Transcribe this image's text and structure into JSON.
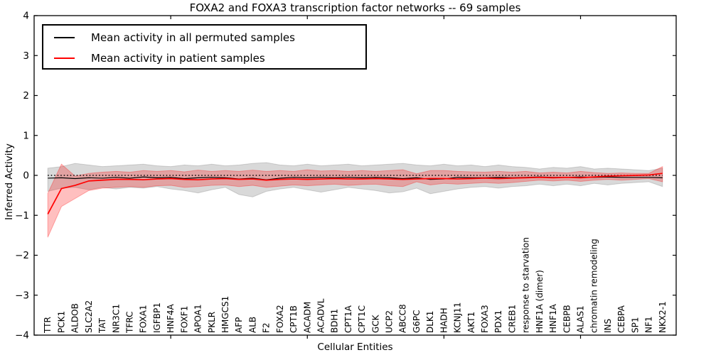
{
  "chart_data": {
    "type": "line",
    "title": "FOXA2 and FOXA3 transcription factor networks -- 69 samples",
    "xlabel": "Cellular Entities",
    "ylabel": "Inferred Activity",
    "ylim": [
      -4,
      4
    ],
    "yticks": [
      -4,
      -3,
      -2,
      -1,
      0,
      1,
      2,
      3,
      4
    ],
    "xticks_index": [
      10,
      20,
      30,
      40
    ],
    "grid": false,
    "legend_position": "upper left",
    "categories": [
      "TTR",
      "PCK1",
      "ALDOB",
      "SLC2A2",
      "TAT",
      "NR3C1",
      "TFRC",
      "FOXA1",
      "IGFBP1",
      "HNF4A",
      "FOXF1",
      "APOA1",
      "PKLR",
      "HMGCS1",
      "AFP",
      "ALB",
      "F2",
      "FOXA2",
      "CPT1B",
      "ACADM",
      "ACADVL",
      "BDH1",
      "CPT1A",
      "CPT1C",
      "GCK",
      "UCP2",
      "ABCC8",
      "G6PC",
      "DLK1",
      "HADH",
      "KCNJ11",
      "AKT1",
      "FOXA3",
      "PDX1",
      "CREB1",
      "response to starvation",
      "HNF1A (dimer)",
      "HNF1A",
      "CEBPB",
      "ALAS1",
      "chromatin remodeling",
      "INS",
      "CEBPA",
      "SP1",
      "NF1",
      "NKX2-1"
    ],
    "series": [
      {
        "name": "Mean activity in all permuted samples",
        "color": "#000000",
        "line_width": 1.2,
        "values": [
          -0.07,
          -0.06,
          -0.08,
          -0.06,
          -0.07,
          -0.05,
          -0.07,
          -0.04,
          -0.06,
          -0.05,
          -0.08,
          -0.06,
          -0.05,
          -0.06,
          -0.09,
          -0.07,
          -0.11,
          -0.07,
          -0.05,
          -0.06,
          -0.05,
          -0.06,
          -0.05,
          -0.06,
          -0.05,
          -0.06,
          -0.08,
          -0.06,
          -0.1,
          -0.09,
          -0.05,
          -0.06,
          -0.06,
          -0.05,
          -0.06,
          -0.05,
          -0.04,
          -0.05,
          -0.05,
          -0.04,
          -0.05,
          -0.04,
          -0.05,
          -0.05,
          -0.05,
          -0.06
        ]
      },
      {
        "name": "Mean activity in patient samples",
        "color": "#ff0000",
        "line_width": 1.7,
        "values": [
          -0.97,
          -0.33,
          -0.25,
          -0.14,
          -0.12,
          -0.1,
          -0.1,
          -0.11,
          -0.09,
          -0.08,
          -0.1,
          -0.11,
          -0.09,
          -0.08,
          -0.1,
          -0.09,
          -0.12,
          -0.1,
          -0.09,
          -0.1,
          -0.09,
          -0.08,
          -0.09,
          -0.09,
          -0.08,
          -0.09,
          -0.1,
          -0.09,
          -0.08,
          -0.08,
          -0.09,
          -0.08,
          -0.07,
          -0.08,
          -0.07,
          -0.06,
          -0.05,
          -0.06,
          -0.05,
          -0.06,
          -0.04,
          -0.02,
          -0.01,
          0.0,
          0.01,
          0.05
        ]
      }
    ],
    "bands": [
      {
        "name": "permuted-samples-uncertainty-band",
        "color": "#000000",
        "fill_opacity": 0.15,
        "edge_opacity": 0.15,
        "upper": [
          0.18,
          0.22,
          0.3,
          0.26,
          0.22,
          0.24,
          0.26,
          0.28,
          0.24,
          0.22,
          0.26,
          0.24,
          0.28,
          0.24,
          0.26,
          0.3,
          0.32,
          0.26,
          0.24,
          0.28,
          0.24,
          0.26,
          0.28,
          0.24,
          0.26,
          0.28,
          0.3,
          0.26,
          0.24,
          0.28,
          0.24,
          0.26,
          0.22,
          0.26,
          0.22,
          0.2,
          0.16,
          0.2,
          0.18,
          0.22,
          0.16,
          0.18,
          0.16,
          0.14,
          0.12,
          0.18
        ],
        "lower": [
          -0.4,
          -0.32,
          -0.3,
          -0.36,
          -0.3,
          -0.34,
          -0.3,
          -0.32,
          -0.28,
          -0.34,
          -0.38,
          -0.44,
          -0.36,
          -0.3,
          -0.48,
          -0.54,
          -0.4,
          -0.34,
          -0.3,
          -0.36,
          -0.42,
          -0.36,
          -0.3,
          -0.34,
          -0.38,
          -0.44,
          -0.41,
          -0.32,
          -0.46,
          -0.4,
          -0.34,
          -0.3,
          -0.28,
          -0.32,
          -0.28,
          -0.26,
          -0.22,
          -0.26,
          -0.22,
          -0.26,
          -0.2,
          -0.24,
          -0.2,
          -0.18,
          -0.16,
          -0.28
        ]
      },
      {
        "name": "patient-samples-uncertainty-band",
        "color": "#ff0000",
        "fill_opacity": 0.25,
        "edge_opacity": 0.3,
        "upper": [
          -0.45,
          0.28,
          -0.02,
          0.05,
          0.08,
          0.1,
          0.08,
          0.12,
          0.1,
          0.12,
          0.09,
          0.13,
          0.1,
          0.12,
          0.1,
          0.13,
          0.1,
          0.12,
          0.1,
          0.14,
          0.11,
          0.12,
          0.1,
          0.12,
          0.1,
          0.12,
          0.14,
          0.04,
          0.12,
          0.12,
          0.1,
          0.09,
          0.08,
          0.1,
          0.08,
          0.1,
          0.06,
          0.08,
          0.06,
          0.1,
          0.07,
          0.05,
          0.06,
          0.05,
          0.05,
          0.22
        ],
        "lower": [
          -1.55,
          -0.78,
          -0.58,
          -0.38,
          -0.32,
          -0.3,
          -0.28,
          -0.3,
          -0.26,
          -0.25,
          -0.3,
          -0.28,
          -0.25,
          -0.24,
          -0.28,
          -0.25,
          -0.3,
          -0.27,
          -0.24,
          -0.26,
          -0.24,
          -0.22,
          -0.25,
          -0.23,
          -0.22,
          -0.26,
          -0.28,
          -0.16,
          -0.24,
          -0.2,
          -0.22,
          -0.2,
          -0.18,
          -0.2,
          -0.18,
          -0.15,
          -0.12,
          -0.14,
          -0.12,
          -0.15,
          -0.12,
          -0.1,
          -0.12,
          -0.1,
          -0.08,
          -0.16
        ]
      }
    ],
    "reference_line": {
      "y": 0,
      "style": "dotted",
      "color": "#000000"
    }
  },
  "legend": {
    "items": [
      {
        "label": "Mean activity in all permuted samples",
        "color": "#000000"
      },
      {
        "label": "Mean activity in patient samples",
        "color": "#ff0000"
      }
    ]
  }
}
